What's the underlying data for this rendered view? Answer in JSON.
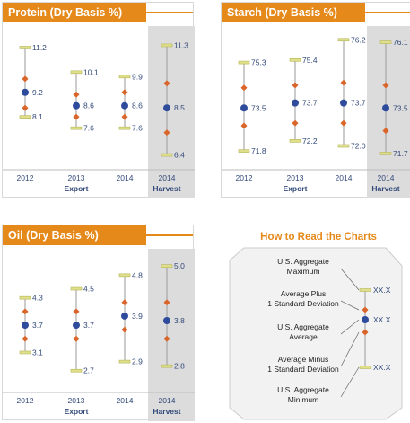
{
  "chart_data": [
    {
      "type": "range",
      "title": "Protein (Dry Basis %)",
      "categories": [
        "2012",
        "2013",
        "2014",
        "2014"
      ],
      "group_labels": [
        "Export",
        "Export",
        "Export",
        "Harvest"
      ],
      "series": [
        {
          "name": "U.S. Aggregate Maximum",
          "values": [
            11.2,
            10.1,
            9.9,
            11.3
          ]
        },
        {
          "name": "Average Plus 1 Standard Deviation",
          "values": [
            9.8,
            9.1,
            9.2,
            9.6
          ]
        },
        {
          "name": "U.S. Aggregate Average",
          "values": [
            9.2,
            8.6,
            8.6,
            8.5
          ]
        },
        {
          "name": "Average Minus 1 Standard Deviation",
          "values": [
            8.5,
            8.1,
            8.1,
            7.4
          ]
        },
        {
          "name": "U.S. Aggregate Minimum",
          "values": [
            8.1,
            7.6,
            7.6,
            6.4
          ]
        }
      ],
      "ylim": [
        5.9,
        12.0
      ]
    },
    {
      "type": "range",
      "title": "Starch (Dry Basis %)",
      "categories": [
        "2012",
        "2013",
        "2014",
        "2014"
      ],
      "group_labels": [
        "Export",
        "Export",
        "Export",
        "Harvest"
      ],
      "series": [
        {
          "name": "U.S. Aggregate Maximum",
          "values": [
            75.3,
            75.4,
            76.2,
            76.1
          ]
        },
        {
          "name": "Average Plus 1 Standard Deviation",
          "values": [
            74.3,
            74.4,
            74.5,
            74.4
          ]
        },
        {
          "name": "U.S. Aggregate Average",
          "values": [
            73.5,
            73.7,
            73.7,
            73.5
          ]
        },
        {
          "name": "Average Minus 1 Standard Deviation",
          "values": [
            72.8,
            72.9,
            72.9,
            72.6
          ]
        },
        {
          "name": "U.S. Aggregate Minimum",
          "values": [
            71.8,
            72.2,
            72.0,
            71.7
          ]
        }
      ],
      "ylim": [
        71.2,
        76.6
      ]
    },
    {
      "type": "range",
      "title": "Oil (Dry Basis %)",
      "categories": [
        "2012",
        "2013",
        "2014",
        "2014"
      ],
      "group_labels": [
        "Export",
        "Export",
        "Export",
        "Harvest"
      ],
      "series": [
        {
          "name": "U.S. Aggregate Maximum",
          "values": [
            4.3,
            4.5,
            4.8,
            5.0
          ]
        },
        {
          "name": "Average Plus 1 Standard Deviation",
          "values": [
            4.0,
            4.0,
            4.2,
            4.2
          ]
        },
        {
          "name": "U.S. Aggregate Average",
          "values": [
            3.7,
            3.7,
            3.9,
            3.8
          ]
        },
        {
          "name": "Average Minus 1 Standard Deviation",
          "values": [
            3.4,
            3.4,
            3.6,
            3.4
          ]
        },
        {
          "name": "U.S. Aggregate Minimum",
          "values": [
            3.1,
            2.7,
            2.9,
            2.8
          ]
        }
      ],
      "ylim": [
        2.3,
        5.3
      ]
    }
  ],
  "legend": {
    "title": "How to Read the Charts",
    "items": [
      {
        "label_lines": [
          "U.S. Aggregate",
          "Maximum"
        ]
      },
      {
        "label_lines": [
          "Average Plus",
          "1 Standard Deviation"
        ]
      },
      {
        "label_lines": [
          "U.S. Aggregate",
          "Average"
        ]
      },
      {
        "label_lines": [
          "Average Minus",
          "1 Standard Deviation"
        ]
      },
      {
        "label_lines": [
          "U.S. Aggregate",
          "Minimum"
        ]
      }
    ],
    "value_placeholder": "XX.X"
  },
  "colors": {
    "title_bg": "#e5891a",
    "average_marker": "#2f4c9c",
    "sd_marker": "#d9652a",
    "minmax_marker": "#e0e08a",
    "harvest_band": "#dcdcdc",
    "text": "#334a7a"
  }
}
